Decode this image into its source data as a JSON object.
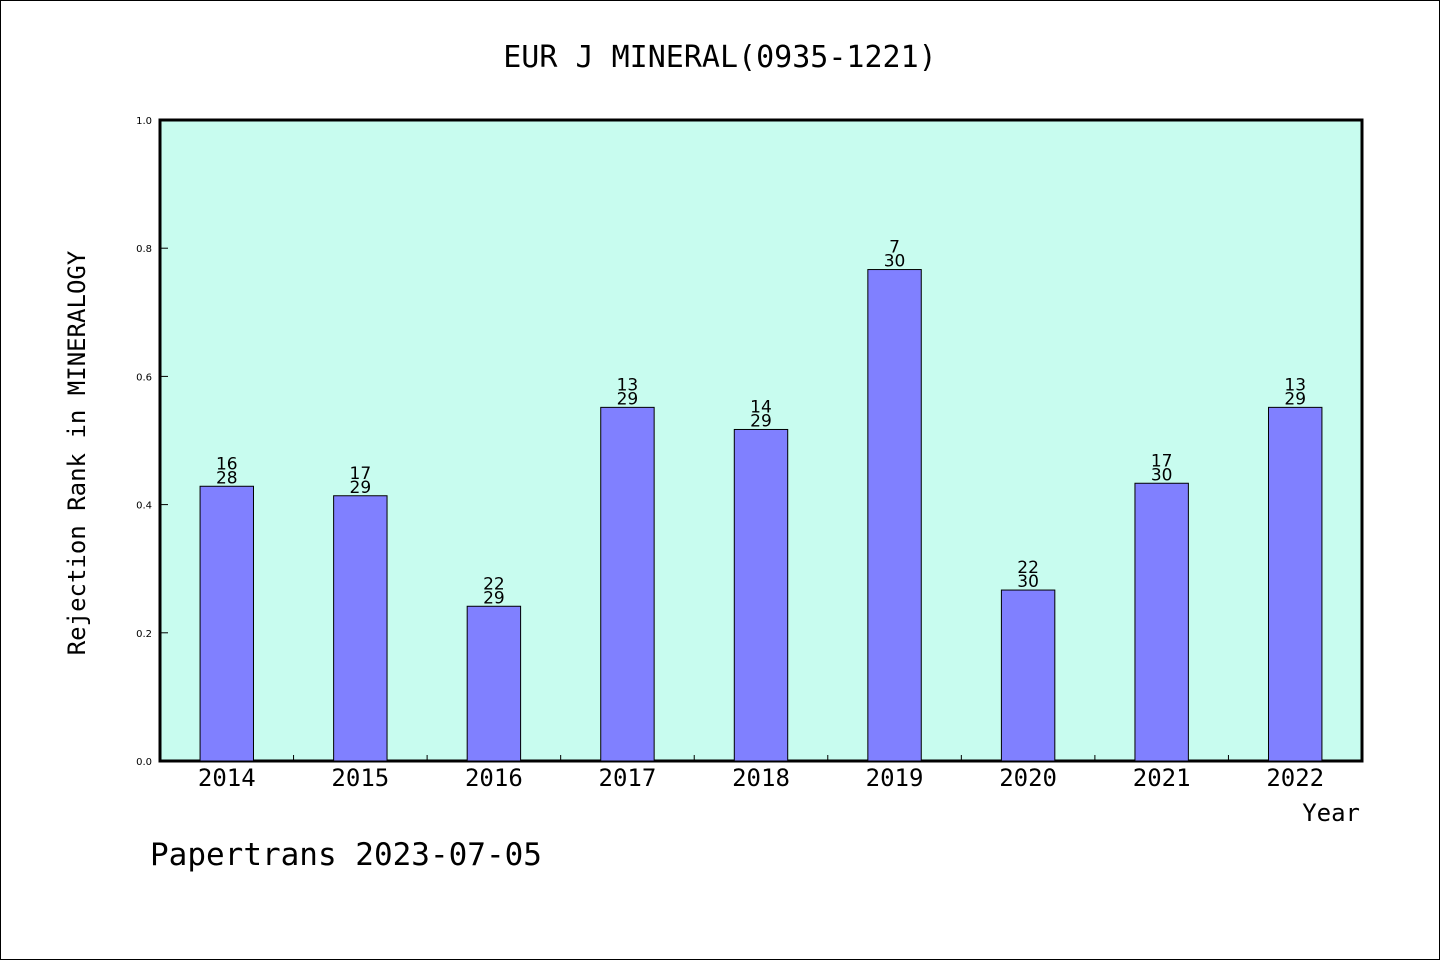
{
  "chart_data": {
    "type": "bar",
    "title": "EUR J MINERAL(0935-1221)",
    "xlabel": "Year",
    "ylabel": "Rejection Rank in MINERALOGY",
    "ylim": [
      0,
      1.0
    ],
    "yticks": [
      "0.0",
      "0.2",
      "0.4",
      "0.6",
      "0.8",
      "1.0"
    ],
    "categories": [
      "2014",
      "2015",
      "2016",
      "2017",
      "2018",
      "2019",
      "2020",
      "2021",
      "2022"
    ],
    "values": [
      0.4286,
      0.4138,
      0.2414,
      0.5517,
      0.5172,
      0.7667,
      0.2667,
      0.4333,
      0.5517
    ],
    "rank_labels": [
      "16",
      "17",
      "22",
      "13",
      "14",
      "7",
      "22",
      "17",
      "13"
    ],
    "total_labels": [
      "28",
      "29",
      "29",
      "29",
      "29",
      "30",
      "30",
      "30",
      "29"
    ],
    "colors": {
      "plot_background": "#c8fcef",
      "bar_fill": "#8080ff",
      "bar_stroke": "#000000"
    },
    "grid": false,
    "legend": "none"
  },
  "footer": {
    "credit": "Papertrans 2023-07-05"
  }
}
